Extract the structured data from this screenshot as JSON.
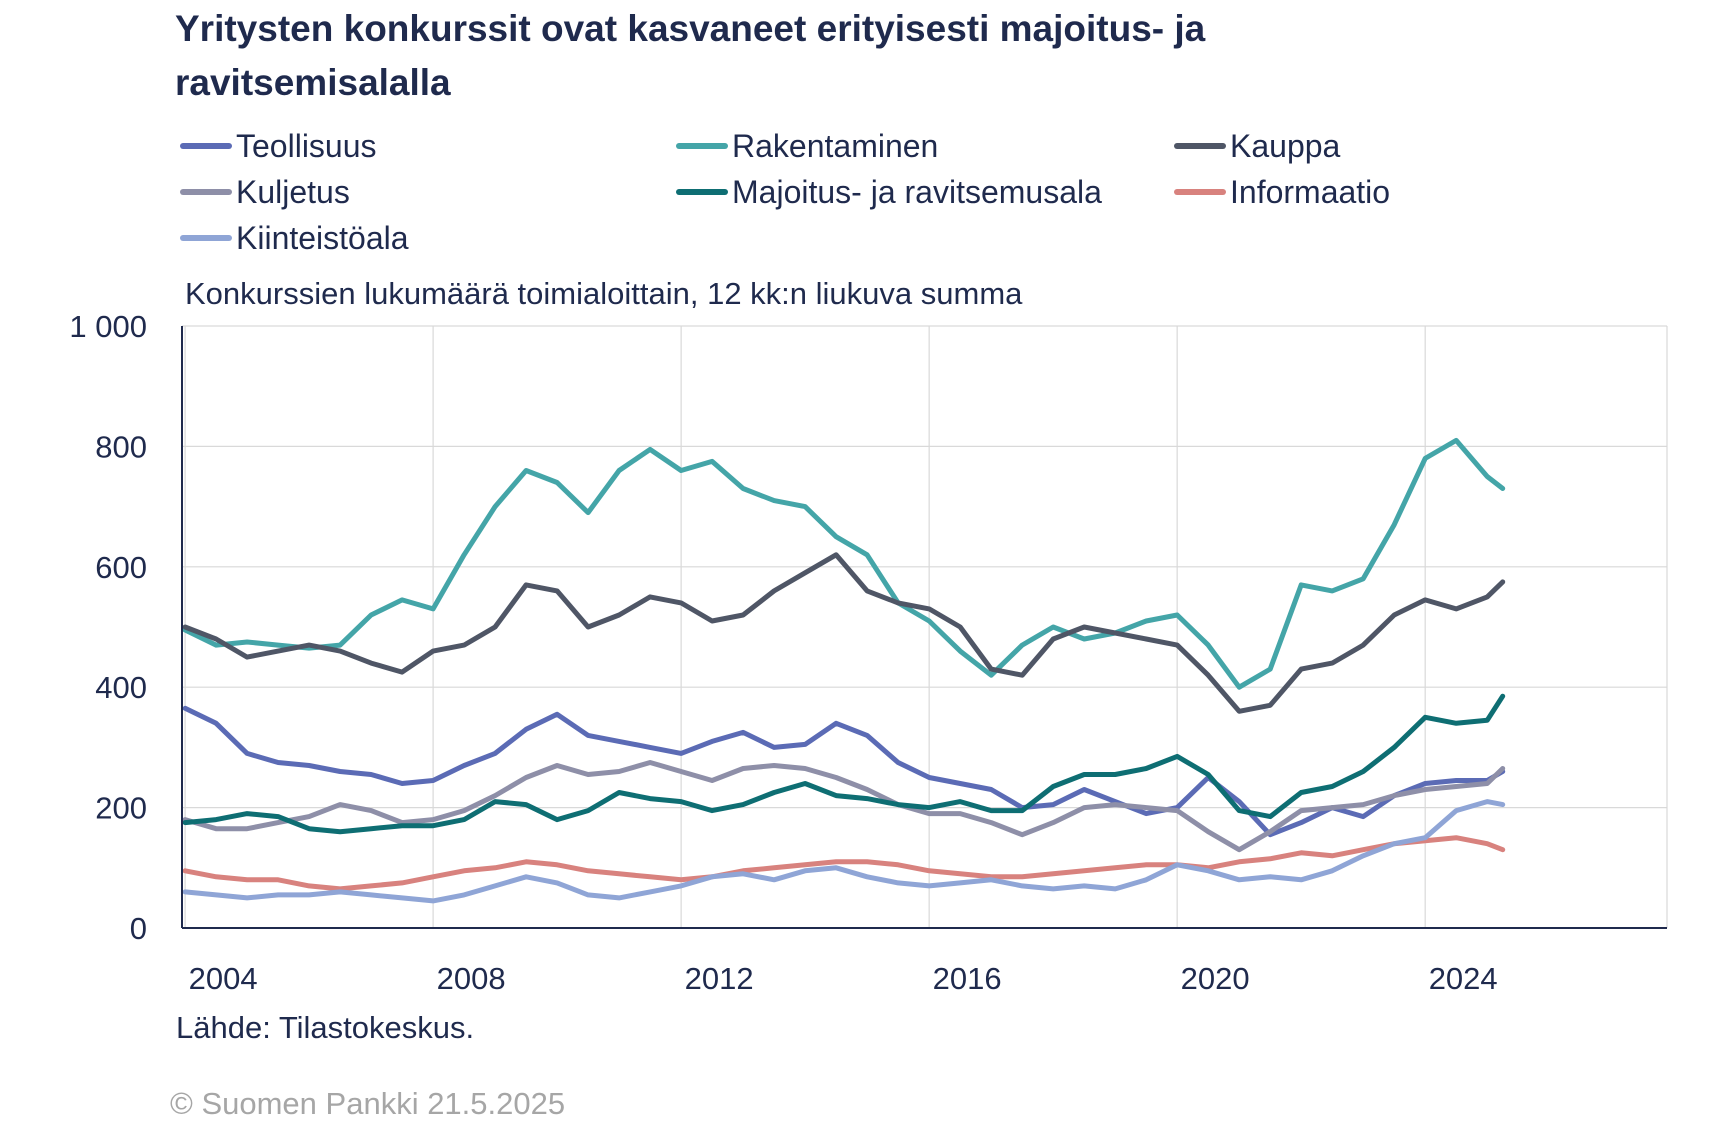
{
  "title": "Yritysten konkurssit ovat kasvaneet erityisesti majoitus- ja ravitsemisalalla",
  "subtitle": "Konkurssien lukumäärä toimialoittain, 12 kk:n liukuva summa",
  "source": "Lähde: Tilastokeskus.",
  "copyright": "© Suomen Pankki 21.5.2025",
  "chart_data": {
    "type": "line",
    "title": "Yritysten konkurssit ovat kasvaneet erityisesti majoitus- ja ravitsemisalalla",
    "subtitle": "Konkurssien lukumäärä toimialoittain, 12 kk:n liukuva summa",
    "xlabel": "",
    "ylabel": "",
    "xlim": [
      2004,
      2028
    ],
    "ylim": [
      0,
      1000
    ],
    "x_ticks": [
      2004,
      2008,
      2012,
      2016,
      2020,
      2024
    ],
    "x_tick_labels": [
      "2004",
      "2008",
      "2012",
      "2016",
      "2020",
      "2024"
    ],
    "y_ticks": [
      0,
      200,
      400,
      600,
      800,
      1000
    ],
    "y_tick_labels": [
      "0",
      "200",
      "400",
      "600",
      "800",
      "1 000"
    ],
    "grid": true,
    "legend_position": "top",
    "x": [
      2004,
      2004.5,
      2005,
      2005.5,
      2006,
      2006.5,
      2007,
      2007.5,
      2008,
      2008.5,
      2009,
      2009.5,
      2010,
      2010.5,
      2011,
      2011.5,
      2012,
      2012.5,
      2013,
      2013.5,
      2014,
      2014.5,
      2015,
      2015.5,
      2016,
      2016.5,
      2017,
      2017.5,
      2018,
      2018.5,
      2019,
      2019.5,
      2020,
      2020.5,
      2021,
      2021.5,
      2022,
      2022.5,
      2023,
      2023.5,
      2024,
      2024.5,
      2025,
      2025.25
    ],
    "series": [
      {
        "name": "Teollisuus",
        "color": "#5b6bb5",
        "values": [
          365,
          340,
          290,
          275,
          270,
          260,
          255,
          240,
          245,
          270,
          290,
          330,
          355,
          320,
          310,
          300,
          290,
          310,
          325,
          300,
          305,
          340,
          320,
          275,
          250,
          240,
          230,
          200,
          205,
          230,
          210,
          190,
          200,
          250,
          210,
          155,
          175,
          200,
          185,
          220,
          240,
          245,
          245,
          260
        ]
      },
      {
        "name": "Rakentaminen",
        "color": "#44a5a8",
        "values": [
          495,
          470,
          475,
          470,
          465,
          470,
          520,
          545,
          530,
          620,
          700,
          760,
          740,
          690,
          760,
          795,
          760,
          775,
          730,
          710,
          700,
          650,
          620,
          540,
          510,
          460,
          420,
          470,
          500,
          480,
          490,
          510,
          520,
          470,
          400,
          430,
          570,
          560,
          580,
          670,
          780,
          810,
          750,
          730
        ]
      },
      {
        "name": "Kauppa",
        "color": "#4f5666",
        "values": [
          500,
          480,
          450,
          460,
          470,
          460,
          440,
          425,
          460,
          470,
          500,
          570,
          560,
          500,
          520,
          550,
          540,
          510,
          520,
          560,
          590,
          620,
          560,
          540,
          530,
          500,
          430,
          420,
          480,
          500,
          490,
          480,
          470,
          420,
          360,
          370,
          430,
          440,
          470,
          520,
          545,
          530,
          550,
          575
        ]
      },
      {
        "name": "Kuljetus",
        "color": "#8e8fa8",
        "values": [
          180,
          165,
          165,
          175,
          185,
          205,
          195,
          175,
          180,
          195,
          220,
          250,
          270,
          255,
          260,
          275,
          260,
          245,
          265,
          270,
          265,
          250,
          230,
          205,
          190,
          190,
          175,
          155,
          175,
          200,
          205,
          200,
          195,
          160,
          130,
          160,
          195,
          200,
          205,
          220,
          230,
          235,
          240,
          265
        ]
      },
      {
        "name": "Majoitus- ja ravitsemusala",
        "color": "#0e6e73",
        "values": [
          175,
          180,
          190,
          185,
          165,
          160,
          165,
          170,
          170,
          180,
          210,
          205,
          180,
          195,
          225,
          215,
          210,
          195,
          205,
          225,
          240,
          220,
          215,
          205,
          200,
          210,
          195,
          195,
          235,
          255,
          255,
          265,
          285,
          255,
          195,
          185,
          225,
          235,
          260,
          300,
          350,
          340,
          345,
          385
        ]
      },
      {
        "name": "Informaatio",
        "color": "#d8827e",
        "values": [
          95,
          85,
          80,
          80,
          70,
          65,
          70,
          75,
          85,
          95,
          100,
          110,
          105,
          95,
          90,
          85,
          80,
          85,
          95,
          100,
          105,
          110,
          110,
          105,
          95,
          90,
          85,
          85,
          90,
          95,
          100,
          105,
          105,
          100,
          110,
          115,
          125,
          120,
          130,
          140,
          145,
          150,
          140,
          130
        ]
      },
      {
        "name": "Kiinteistöala",
        "color": "#8fa5d6",
        "values": [
          60,
          55,
          50,
          55,
          55,
          60,
          55,
          50,
          45,
          55,
          70,
          85,
          75,
          55,
          50,
          60,
          70,
          85,
          90,
          80,
          95,
          100,
          85,
          75,
          70,
          75,
          80,
          70,
          65,
          70,
          65,
          80,
          105,
          95,
          80,
          85,
          80,
          95,
          120,
          140,
          150,
          195,
          210,
          205
        ]
      }
    ]
  }
}
